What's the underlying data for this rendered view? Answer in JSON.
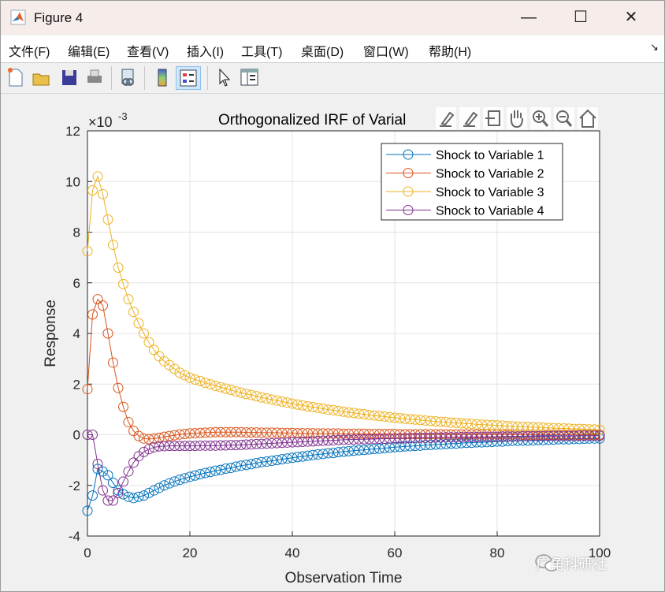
{
  "window": {
    "title": "Figure 4",
    "minimize": "—",
    "maximize": "☐",
    "close": "✕"
  },
  "menu": [
    "文件(F)",
    "编辑(E)",
    "查看(V)",
    "插入(I)",
    "工具(T)",
    "桌面(D)",
    "窗口(W)",
    "帮助(H)"
  ],
  "menu_corner": "↘",
  "toolbar": [
    "new-figure-icon",
    "open-icon",
    "save-icon",
    "print-icon",
    "link-icon",
    "colorbar-icon",
    "legend-icon",
    "pointer-icon",
    "property-inspector-icon"
  ],
  "watermark": "广角科研社",
  "colors": {
    "s1": "#0072BD",
    "s2": "#D95319",
    "s3": "#EDB120",
    "s4": "#7E2F8E"
  },
  "chart_data": {
    "type": "line",
    "title": "Orthogonalized IRF of Varial",
    "xlabel": "Observation Time",
    "ylabel": "Response",
    "yexponent": "×10",
    "yexp_power": "-3",
    "xlim": [
      0,
      100
    ],
    "ylim": [
      -4,
      12
    ],
    "xticks": [
      0,
      20,
      40,
      60,
      80,
      100
    ],
    "yticks": [
      -4,
      -2,
      0,
      2,
      4,
      6,
      8,
      10,
      12
    ],
    "grid": true,
    "legend_position": "top-right",
    "y_scale_note": "values in units of 1e-3",
    "series": [
      {
        "name": "Shock to Variable 1",
        "values": [
          -3.0,
          -2.4,
          -1.35,
          -1.45,
          -1.6,
          -1.9,
          -2.2,
          -2.35,
          -2.45,
          -2.5,
          -2.45,
          -2.4,
          -2.3,
          -2.2,
          -2.1,
          -2.0,
          -1.92,
          -1.85,
          -1.78,
          -1.72,
          -1.66,
          -1.61,
          -1.56,
          -1.51,
          -1.47,
          -1.42,
          -1.39,
          -1.34,
          -1.31,
          -1.26,
          -1.22,
          -1.19,
          -1.16,
          -1.12,
          -1.08,
          -1.06,
          -1.03,
          -1.0,
          -0.97,
          -0.94,
          -0.91,
          -0.88,
          -0.86,
          -0.83,
          -0.8,
          -0.78,
          -0.76,
          -0.73,
          -0.72,
          -0.69,
          -0.67,
          -0.65,
          -0.63,
          -0.61,
          -0.6,
          -0.58,
          -0.56,
          -0.55,
          -0.53,
          -0.51,
          -0.49,
          -0.48,
          -0.46,
          -0.45,
          -0.44,
          -0.43,
          -0.41,
          -0.4,
          -0.39,
          -0.38,
          -0.37,
          -0.35,
          -0.35,
          -0.33,
          -0.32,
          -0.32,
          -0.3,
          -0.3,
          -0.29,
          -0.28,
          -0.27,
          -0.27,
          -0.25,
          -0.24,
          -0.24,
          -0.23,
          -0.23,
          -0.22,
          -0.21,
          -0.21,
          -0.2,
          -0.19,
          -0.18,
          -0.18,
          -0.18,
          -0.17,
          -0.17,
          -0.16,
          -0.15,
          -0.15,
          -0.15
        ]
      },
      {
        "name": "Shock to Variable 2",
        "values": [
          1.8,
          4.75,
          5.35,
          5.1,
          4.0,
          2.85,
          1.85,
          1.1,
          0.5,
          0.15,
          -0.05,
          -0.15,
          -0.17,
          -0.15,
          -0.12,
          -0.08,
          -0.05,
          -0.02,
          0.01,
          0.03,
          0.05,
          0.06,
          0.07,
          0.08,
          0.09,
          0.1,
          0.1,
          0.1,
          0.1,
          0.1,
          0.1,
          0.09,
          0.09,
          0.09,
          0.08,
          0.08,
          0.08,
          0.08,
          0.07,
          0.07,
          0.07,
          0.06,
          0.06,
          0.06,
          0.06,
          0.05,
          0.05,
          0.05,
          0.05,
          0.05,
          0.04,
          0.04,
          0.04,
          0.04,
          0.04,
          0.03,
          0.03,
          0.03,
          0.03,
          0.03,
          0.03,
          0.02,
          0.02,
          0.02,
          0.02,
          0.02,
          0.02,
          0.02,
          0.02,
          0.02,
          0.01,
          0.01,
          0.01,
          0.01,
          0.01,
          0.01,
          0.01,
          0.01,
          0.01,
          0.01,
          0.01,
          0.01,
          0.01,
          0.01,
          0.01,
          0.0,
          0.0,
          0.0,
          0.0,
          0.0,
          0.0,
          0.0,
          0.0,
          0.0,
          0.0,
          0.0,
          0.0,
          0.0,
          0.0,
          0.0,
          0.0
        ]
      },
      {
        "name": "Shock to Variable 3",
        "values": [
          7.25,
          9.65,
          10.2,
          9.5,
          8.5,
          7.5,
          6.6,
          5.95,
          5.35,
          4.85,
          4.4,
          4.0,
          3.65,
          3.35,
          3.1,
          2.9,
          2.75,
          2.6,
          2.45,
          2.35,
          2.25,
          2.18,
          2.12,
          2.05,
          1.99,
          1.93,
          1.88,
          1.82,
          1.77,
          1.71,
          1.66,
          1.61,
          1.57,
          1.52,
          1.47,
          1.43,
          1.39,
          1.35,
          1.31,
          1.27,
          1.23,
          1.19,
          1.16,
          1.12,
          1.09,
          1.06,
          1.03,
          0.99,
          0.97,
          0.94,
          0.91,
          0.88,
          0.86,
          0.83,
          0.81,
          0.78,
          0.76,
          0.74,
          0.72,
          0.69,
          0.67,
          0.65,
          0.63,
          0.61,
          0.6,
          0.58,
          0.56,
          0.54,
          0.53,
          0.51,
          0.5,
          0.48,
          0.47,
          0.45,
          0.44,
          0.43,
          0.41,
          0.4,
          0.39,
          0.38,
          0.37,
          0.36,
          0.34,
          0.33,
          0.32,
          0.31,
          0.31,
          0.3,
          0.29,
          0.28,
          0.27,
          0.26,
          0.25,
          0.25,
          0.24,
          0.23,
          0.23,
          0.22,
          0.21,
          0.21,
          0.2
        ]
      },
      {
        "name": "Shock to Variable 4",
        "values": [
          0.0,
          0.0,
          -1.15,
          -2.2,
          -2.6,
          -2.6,
          -2.3,
          -1.85,
          -1.45,
          -1.1,
          -0.85,
          -0.68,
          -0.57,
          -0.5,
          -0.46,
          -0.45,
          -0.44,
          -0.44,
          -0.44,
          -0.44,
          -0.44,
          -0.44,
          -0.43,
          -0.43,
          -0.43,
          -0.43,
          -0.42,
          -0.42,
          -0.41,
          -0.41,
          -0.4,
          -0.39,
          -0.38,
          -0.37,
          -0.36,
          -0.35,
          -0.34,
          -0.33,
          -0.32,
          -0.31,
          -0.3,
          -0.29,
          -0.28,
          -0.27,
          -0.26,
          -0.25,
          -0.24,
          -0.23,
          -0.22,
          -0.21,
          -0.2,
          -0.19,
          -0.19,
          -0.18,
          -0.18,
          -0.17,
          -0.17,
          -0.16,
          -0.16,
          -0.15,
          -0.15,
          -0.14,
          -0.14,
          -0.13,
          -0.13,
          -0.12,
          -0.12,
          -0.12,
          -0.11,
          -0.11,
          -0.1,
          -0.1,
          -0.1,
          -0.09,
          -0.09,
          -0.09,
          -0.09,
          -0.08,
          -0.08,
          -0.08,
          -0.08,
          -0.07,
          -0.07,
          -0.07,
          -0.07,
          -0.06,
          -0.06,
          -0.06,
          -0.06,
          -0.06,
          -0.05,
          -0.05,
          -0.05,
          -0.05,
          -0.05,
          -0.05,
          -0.04,
          -0.04,
          -0.04,
          -0.04,
          -0.04
        ]
      }
    ]
  }
}
